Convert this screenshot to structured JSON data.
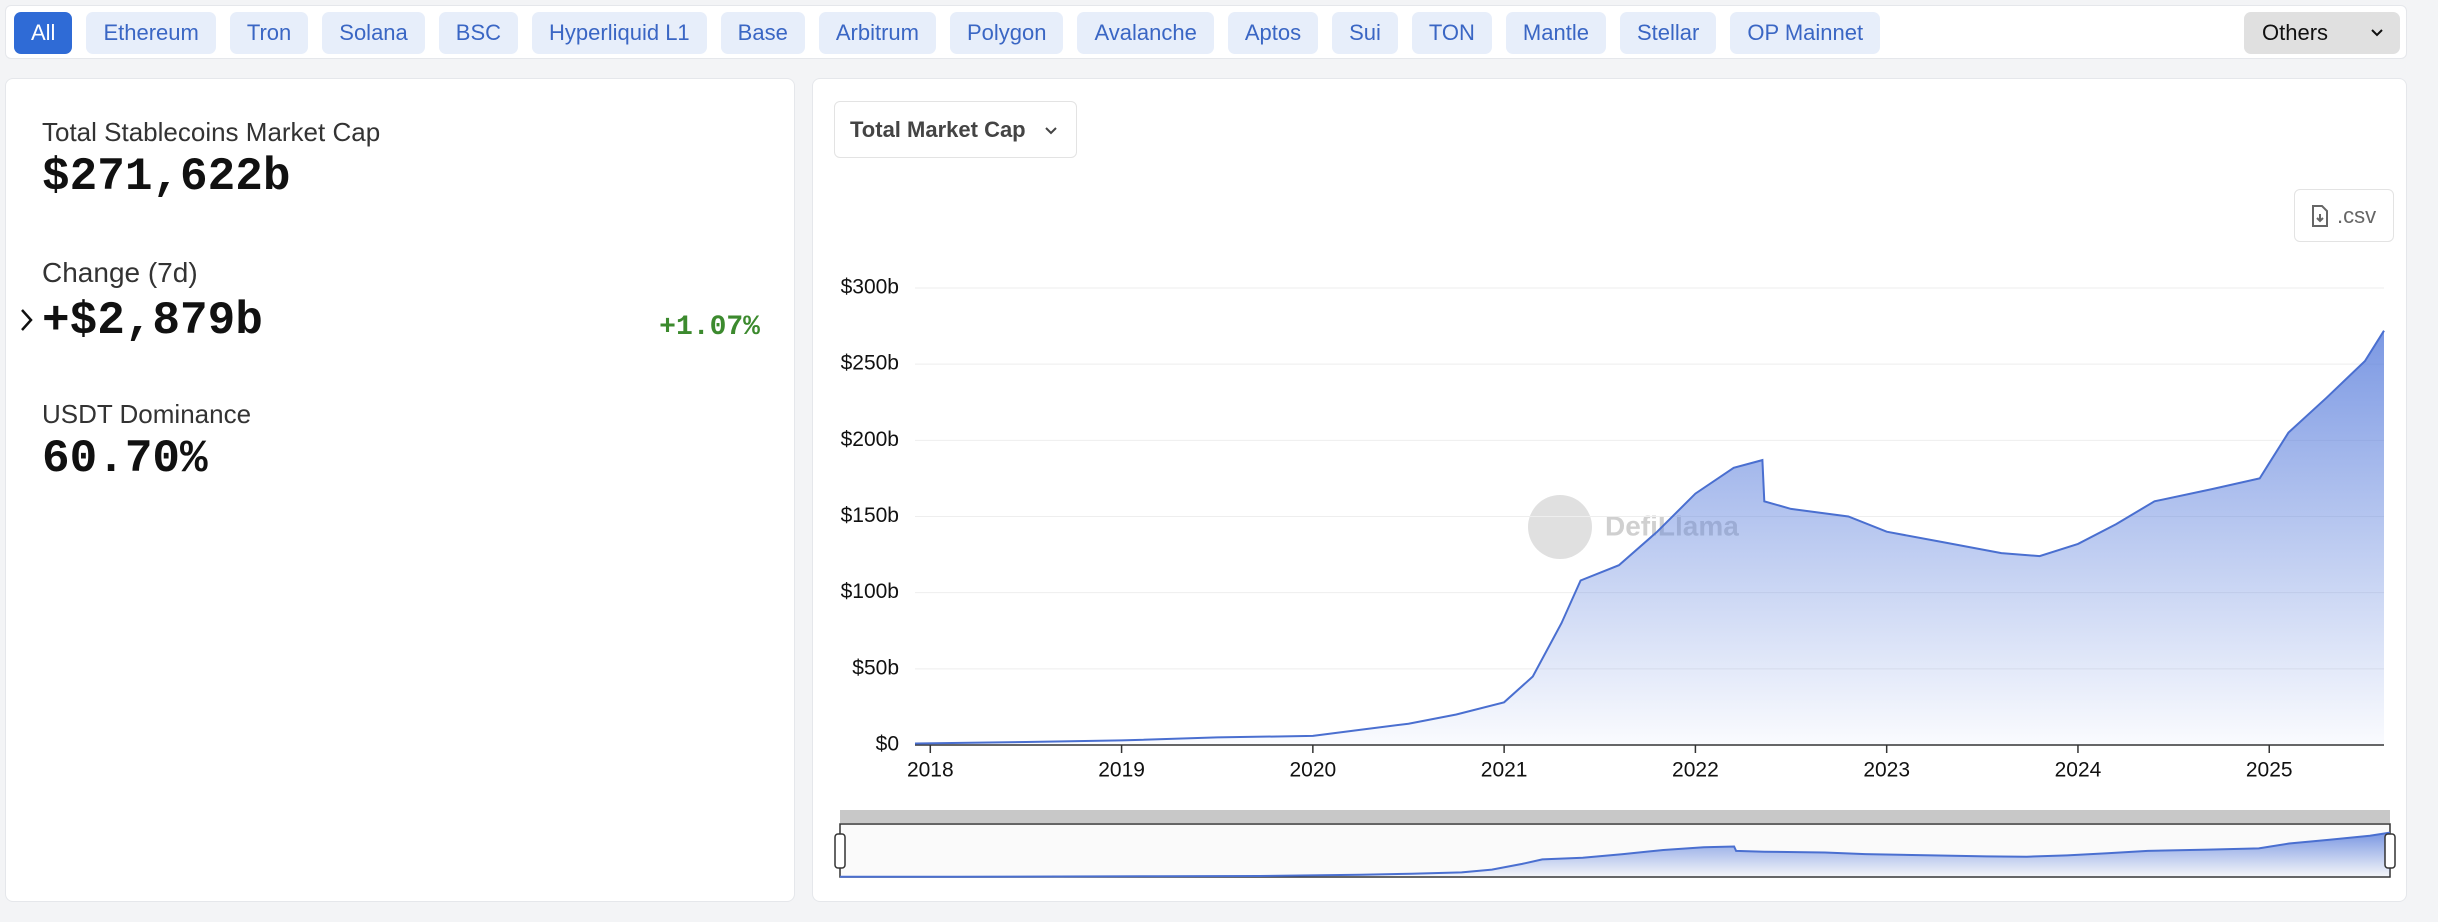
{
  "tabs": [
    "All",
    "Ethereum",
    "Tron",
    "Solana",
    "BSC",
    "Hyperliquid L1",
    "Base",
    "Arbitrum",
    "Polygon",
    "Avalanche",
    "Aptos",
    "Sui",
    "TON",
    "Mantle",
    "Stellar",
    "OP Mainnet"
  ],
  "others": "Others",
  "stats": {
    "market_cap_label": "Total Stablecoins Market Cap",
    "market_cap": "$271,622b",
    "change_label": "Change (7d)",
    "change": "+$2,879b",
    "change_pct": "+1.07%",
    "dominance_label": "USDT Dominance",
    "dominance": "60.70%"
  },
  "chart_data": {
    "type": "area",
    "dropdown": "Total Market Cap",
    "csv": ".csv",
    "watermark": "DefiLlama",
    "x": [
      2017.92,
      2018.5,
      2019.0,
      2019.5,
      2020.0,
      2020.25,
      2020.5,
      2020.75,
      2021.0,
      2021.15,
      2021.3,
      2021.4,
      2021.6,
      2021.8,
      2022.0,
      2022.2,
      2022.35,
      2022.36,
      2022.5,
      2022.8,
      2023.0,
      2023.3,
      2023.6,
      2023.8,
      2024.0,
      2024.2,
      2024.4,
      2024.7,
      2024.95,
      2025.0,
      2025.1,
      2025.3,
      2025.5,
      2025.6
    ],
    "values": [
      1,
      2,
      3,
      5,
      6,
      10,
      14,
      20,
      28,
      45,
      80,
      108,
      118,
      140,
      165,
      182,
      187,
      160,
      155,
      150,
      140,
      133,
      126,
      124,
      132,
      145,
      160,
      168,
      175,
      185,
      205,
      228,
      252,
      272
    ],
    "color": "#4a6fd0",
    "xlim": [
      2017.92,
      2025.6
    ],
    "xticks": [
      2018,
      2019,
      2020,
      2021,
      2022,
      2023,
      2024,
      2025
    ],
    "ylim": [
      0,
      300
    ],
    "yticks": [
      {
        "value": 0,
        "label": "$0"
      },
      {
        "value": 50,
        "label": "$50b"
      },
      {
        "value": 100,
        "label": "$100b"
      },
      {
        "value": 150,
        "label": "$150b"
      },
      {
        "value": 200,
        "label": "$200b"
      },
      {
        "value": 250,
        "label": "$250b"
      },
      {
        "value": 300,
        "label": "$300b"
      }
    ],
    "grid": true
  }
}
